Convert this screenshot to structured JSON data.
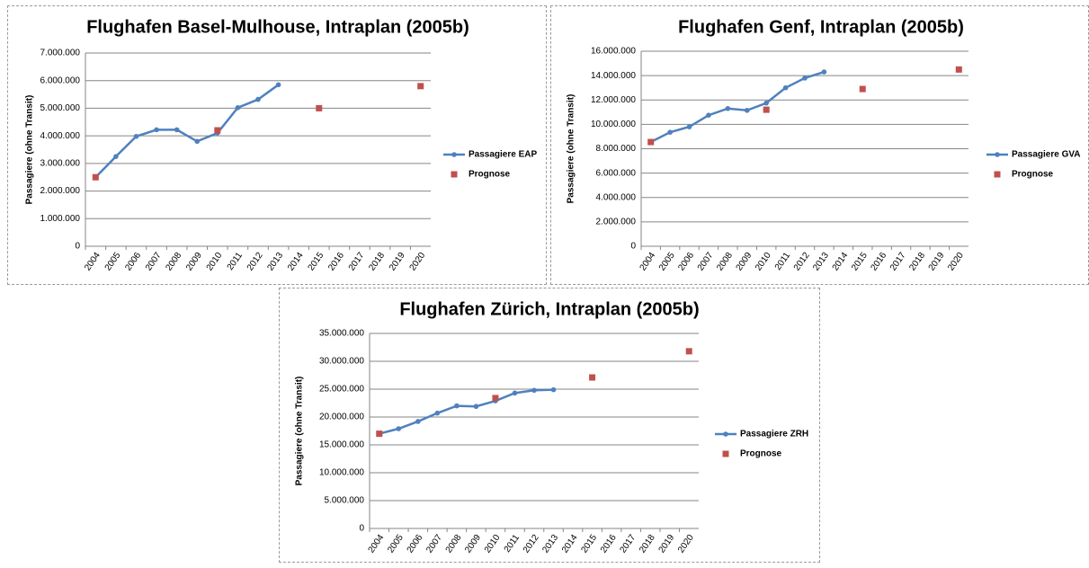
{
  "chart_data": [
    {
      "type": "line",
      "title": "Flughafen Basel-Mulhouse, Intraplan (2005b)",
      "y_label": "Passagiere (ohne Transit)",
      "categories": [
        "2004",
        "2005",
        "2006",
        "2007",
        "2008",
        "2009",
        "2010",
        "2011",
        "2012",
        "2013",
        "2014",
        "2015",
        "2016",
        "2017",
        "2018",
        "2019",
        "2020"
      ],
      "series": [
        {
          "name": "Passagiere EAP",
          "color": "#4f81bd",
          "style": "line",
          "values": [
            2500000,
            3250000,
            3980000,
            4220000,
            4220000,
            3800000,
            4100000,
            5020000,
            5320000,
            5850000,
            null,
            null,
            null,
            null,
            null,
            null,
            null
          ]
        },
        {
          "name": "Prognose",
          "color": "#c0504d",
          "style": "markers",
          "values": [
            2500000,
            null,
            null,
            null,
            null,
            null,
            4200000,
            null,
            null,
            null,
            null,
            5000000,
            null,
            null,
            null,
            null,
            5800000
          ]
        }
      ],
      "ylim": [
        0,
        7000000
      ],
      "yticks": [
        0,
        {
          "value": 1000000,
          "label": "1.000.000"
        },
        {
          "value": 2000000,
          "label": "2.000.000"
        },
        {
          "value": 3000000,
          "label": "3.000.000"
        },
        {
          "value": 4000000,
          "label": "4.000.000"
        },
        {
          "value": 5000000,
          "label": "5.000.000"
        },
        {
          "value": 6000000,
          "label": "6.000.000"
        },
        {
          "value": 7000000,
          "label": "7.000.000"
        }
      ],
      "grid": true,
      "legend": "right"
    },
    {
      "type": "line",
      "title": "Flughafen Genf, Intraplan (2005b)",
      "y_label": "Passagiere (ohne Transit)",
      "categories": [
        "2004",
        "2005",
        "2006",
        "2007",
        "2008",
        "2009",
        "2010",
        "2011",
        "2012",
        "2013",
        "2014",
        "2015",
        "2016",
        "2017",
        "2018",
        "2019",
        "2020"
      ],
      "series": [
        {
          "name": "Passagiere GVA",
          "color": "#4f81bd",
          "style": "line",
          "values": [
            8550000,
            9350000,
            9800000,
            10750000,
            11300000,
            11150000,
            11750000,
            13000000,
            13800000,
            14300000,
            null,
            null,
            null,
            null,
            null,
            null,
            null
          ]
        },
        {
          "name": "Prognose",
          "color": "#c0504d",
          "style": "markers",
          "values": [
            8550000,
            null,
            null,
            null,
            null,
            null,
            11200000,
            null,
            null,
            null,
            null,
            12900000,
            null,
            null,
            null,
            null,
            14500000
          ]
        }
      ],
      "ylim": [
        0,
        16000000
      ],
      "yticks": [
        0,
        {
          "value": 2000000,
          "label": "2.000.000"
        },
        {
          "value": 4000000,
          "label": "4.000.000"
        },
        {
          "value": 6000000,
          "label": "6.000.000"
        },
        {
          "value": 8000000,
          "label": "8.000.000"
        },
        {
          "value": 10000000,
          "label": "10.000.000"
        },
        {
          "value": 12000000,
          "label": "12.000.000"
        },
        {
          "value": 14000000,
          "label": "14.000.000"
        },
        {
          "value": 16000000,
          "label": "16.000.000"
        }
      ],
      "grid": true,
      "legend": "right"
    },
    {
      "type": "line",
      "title": "Flughafen Zürich, Intraplan (2005b)",
      "y_label": "Passagiere (ohne Transit)",
      "categories": [
        "2004",
        "2005",
        "2006",
        "2007",
        "2008",
        "2009",
        "2010",
        "2011",
        "2012",
        "2013",
        "2014",
        "2015",
        "2016",
        "2017",
        "2018",
        "2019",
        "2020"
      ],
      "series": [
        {
          "name": "Passagiere ZRH",
          "color": "#4f81bd",
          "style": "line",
          "values": [
            17000000,
            17900000,
            19200000,
            20700000,
            22000000,
            21900000,
            22900000,
            24300000,
            24800000,
            24900000,
            null,
            null,
            null,
            null,
            null,
            null,
            null
          ]
        },
        {
          "name": "Prognose",
          "color": "#c0504d",
          "style": "markers",
          "values": [
            17000000,
            null,
            null,
            null,
            null,
            null,
            23400000,
            null,
            null,
            null,
            null,
            27100000,
            null,
            null,
            null,
            null,
            31800000
          ]
        }
      ],
      "ylim": [
        0,
        35000000
      ],
      "yticks": [
        0,
        {
          "value": 5000000,
          "label": "5.000.000"
        },
        {
          "value": 10000000,
          "label": "10.000.000"
        },
        {
          "value": 15000000,
          "label": "15.000.000"
        },
        {
          "value": 20000000,
          "label": "20.000.000"
        },
        {
          "value": 25000000,
          "label": "25.000.000"
        },
        {
          "value": 30000000,
          "label": "30.000.000"
        },
        {
          "value": 35000000,
          "label": "35.000.000"
        }
      ],
      "grid": true,
      "legend": "right"
    }
  ]
}
